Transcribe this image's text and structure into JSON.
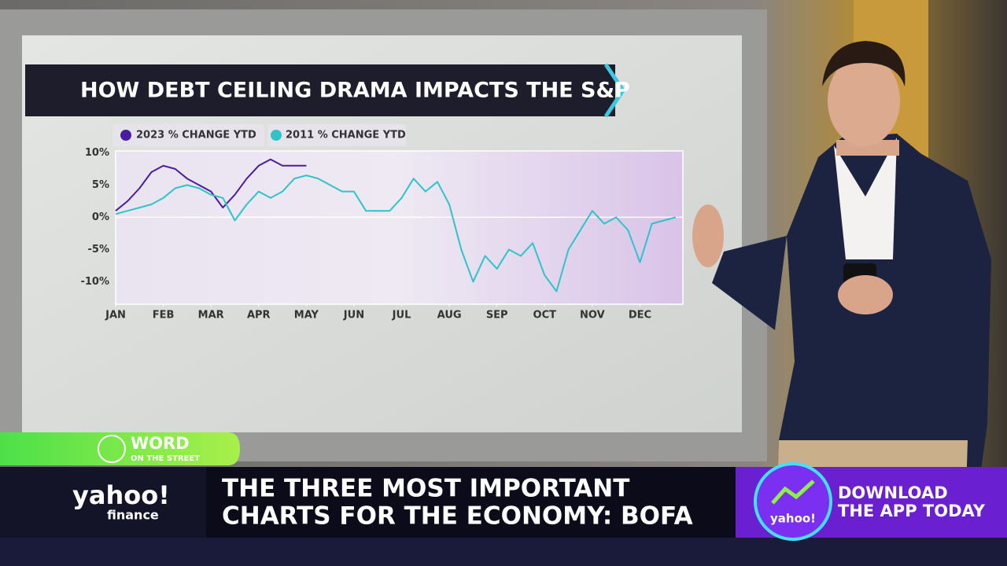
{
  "chart_data": {
    "type": "line",
    "title": "HOW DEBT CEILING DRAMA IMPACTS THE S&P",
    "x": [
      0,
      0.25,
      0.5,
      0.75,
      1,
      1.25,
      1.5,
      1.75,
      2,
      2.25,
      2.5,
      2.75,
      3,
      3.25,
      3.5,
      3.75,
      4,
      4.25,
      4.5,
      4.75,
      5,
      5.25,
      5.5,
      5.75,
      6,
      6.25,
      6.5,
      6.75,
      7,
      7.25,
      7.5,
      7.75,
      8,
      8.25,
      8.5,
      8.75,
      9,
      9.25,
      9.5,
      9.75,
      10,
      10.25,
      10.5,
      10.75,
      11,
      11.25,
      11.5,
      11.75
    ],
    "series": [
      {
        "name": "2023 % CHANGE YTD",
        "color": "#4a1d9e",
        "values": [
          1,
          2.5,
          4.5,
          7,
          8,
          7.5,
          6,
          5,
          4,
          1.5,
          3.5,
          6,
          8,
          9,
          8,
          8,
          8,
          null,
          null,
          null,
          null,
          null,
          null,
          null,
          null,
          null,
          null,
          null,
          null,
          null,
          null,
          null,
          null,
          null,
          null,
          null,
          null,
          null,
          null,
          null,
          null,
          null,
          null,
          null,
          null,
          null,
          null,
          null
        ]
      },
      {
        "name": "2011 % CHANGE YTD",
        "color": "#2ec4c9",
        "values": [
          0.5,
          1,
          1.5,
          2,
          3,
          4.5,
          5,
          4.5,
          3.5,
          3,
          -0.5,
          2,
          4,
          3,
          4,
          6,
          6.5,
          6,
          5,
          4,
          4,
          1,
          1,
          1,
          3,
          6,
          4,
          5.5,
          2,
          -5,
          -10,
          -6,
          -8,
          -5,
          -6,
          -4,
          -9,
          -11.5,
          -5,
          -2,
          1,
          -1,
          0,
          -2,
          -7,
          -1,
          -0.5,
          0
        ]
      }
    ],
    "xlim": [
      0,
      11.9
    ],
    "xticks": [
      {
        "value": 0,
        "label": "JAN"
      },
      {
        "value": 1,
        "label": "FEB"
      },
      {
        "value": 2,
        "label": "MAR"
      },
      {
        "value": 3,
        "label": "APR"
      },
      {
        "value": 4,
        "label": "MAY"
      },
      {
        "value": 5,
        "label": "JUN"
      },
      {
        "value": 6,
        "label": "JUL"
      },
      {
        "value": 7,
        "label": "AUG"
      },
      {
        "value": 8,
        "label": "SEP"
      },
      {
        "value": 9,
        "label": "OCT"
      },
      {
        "value": 10,
        "label": "NOV"
      },
      {
        "value": 11,
        "label": "DEC"
      }
    ],
    "ylim": [
      -13.5,
      10.3
    ],
    "yticks": [
      {
        "value": -10,
        "label": "-10%"
      },
      {
        "value": -5,
        "label": "-5%"
      },
      {
        "value": 0,
        "label": "0%"
      },
      {
        "value": 5,
        "label": "5%"
      },
      {
        "value": 10,
        "label": "10%"
      }
    ],
    "grid": false
  },
  "lower_third": {
    "tag": "WORD",
    "tag_sub": "ON THE STREET",
    "brand": "yahoo!",
    "brand_sub": "finance",
    "headline": [
      "THE THREE MOST IMPORTANT",
      "CHARTS FOR THE ECONOMY: BOFA"
    ],
    "promo_logo": "yahoo!",
    "promo": [
      "DOWNLOAD",
      "THE APP TODAY"
    ]
  }
}
